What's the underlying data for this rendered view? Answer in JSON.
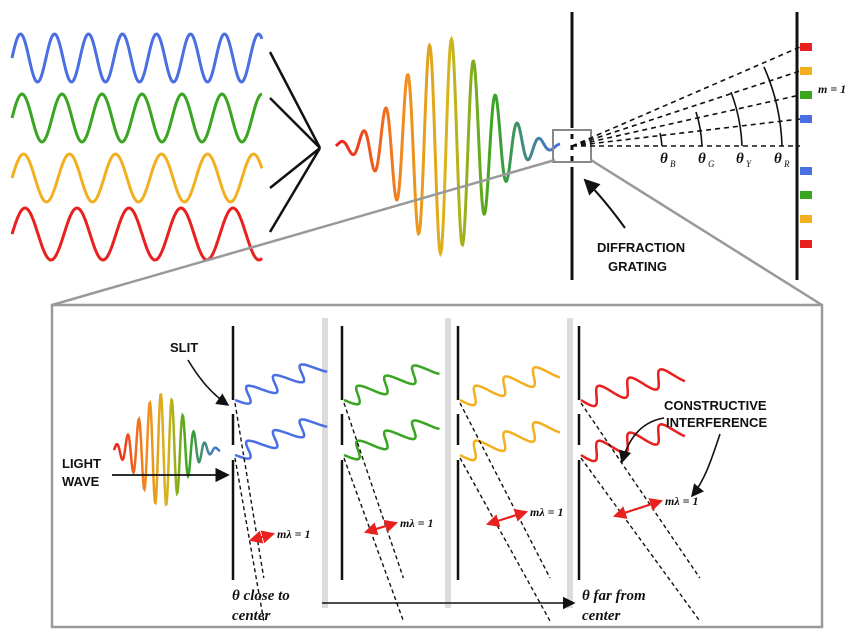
{
  "colors": {
    "blue": "#4a6fe3",
    "green": "#3aa520",
    "yellow": "#f2b020",
    "red": "#e8201e",
    "ink": "#111111",
    "panel_border": "#9a9a9a",
    "separator": "#dcdcdc"
  },
  "top": {
    "screen_order_label": "m = 1",
    "angles": [
      {
        "symbol": "θ",
        "sub": "B"
      },
      {
        "symbol": "θ",
        "sub": "G"
      },
      {
        "symbol": "θ",
        "sub": "Y"
      },
      {
        "symbol": "θ",
        "sub": "R"
      }
    ],
    "grating_label_line1": "DIFFRACTION",
    "grating_label_line2": "GRATING"
  },
  "inset": {
    "slit_label": "SLIT",
    "light_wave_line1": "LIGHT",
    "light_wave_line2": "WAVE",
    "constructive_line1": "CONSTRUCTIVE",
    "constructive_line2": "INTERFERENCE",
    "path_difference_label": "mλ = 1",
    "theta_close_line1": "θ close to",
    "theta_close_line2": "center",
    "theta_far_line1": "θ far from",
    "theta_far_line2": "center"
  }
}
